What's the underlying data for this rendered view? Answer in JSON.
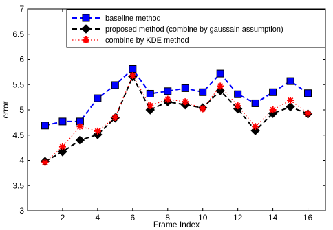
{
  "chart_data": {
    "type": "line",
    "title": "",
    "xlabel": "Frame Index",
    "ylabel": "error",
    "xlim": [
      0,
      17
    ],
    "ylim": [
      3,
      7
    ],
    "xticks": [
      2,
      4,
      6,
      8,
      10,
      12,
      14,
      16
    ],
    "yticks": [
      3,
      3.5,
      4,
      4.5,
      5,
      5.5,
      6,
      6.5,
      7
    ],
    "grid": false,
    "legend_position": "top-right",
    "x": [
      1,
      2,
      3,
      4,
      5,
      6,
      7,
      8,
      9,
      10,
      11,
      12,
      13,
      14,
      15,
      16
    ],
    "series": [
      {
        "name": "baseline method",
        "color": "#0000ff",
        "marker": "square",
        "marker_fill": "#0000ff",
        "line_style": "dashed",
        "values": [
          4.69,
          4.77,
          4.77,
          5.23,
          5.49,
          5.81,
          5.32,
          5.37,
          5.43,
          5.35,
          5.72,
          5.31,
          5.13,
          5.35,
          5.57,
          5.33
        ]
      },
      {
        "name": "proposed method (combine by gaussain assumption)",
        "color": "#000000",
        "marker": "diamond",
        "marker_fill": "#000000",
        "line_style": "dashed",
        "values": [
          3.98,
          4.17,
          4.4,
          4.51,
          4.84,
          5.66,
          5.0,
          5.16,
          5.1,
          5.04,
          5.38,
          5.02,
          4.59,
          4.93,
          5.06,
          4.92
        ]
      },
      {
        "name": "combine by KDE method",
        "color": "#ff0000",
        "marker": "asterisk",
        "marker_fill": "#ff0000",
        "line_style": "dotted",
        "values": [
          3.96,
          4.27,
          4.67,
          4.58,
          4.85,
          5.68,
          5.08,
          5.21,
          5.16,
          5.02,
          5.47,
          5.08,
          4.67,
          5.0,
          5.19,
          4.93
        ]
      }
    ]
  }
}
